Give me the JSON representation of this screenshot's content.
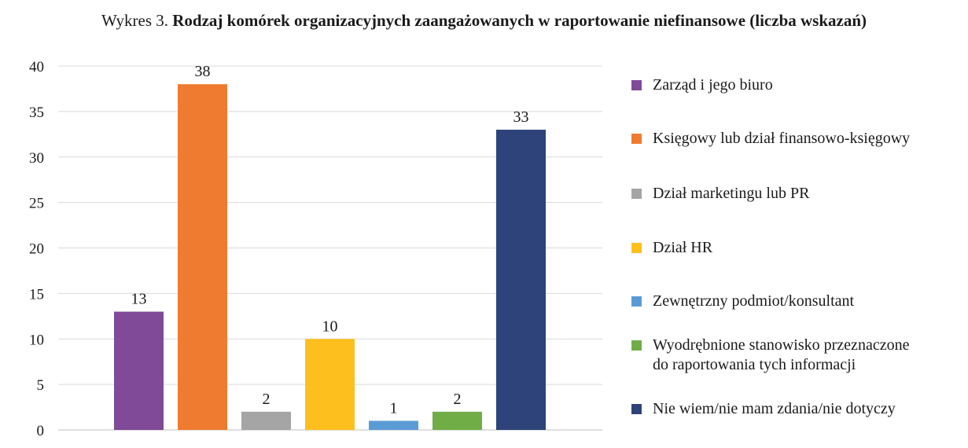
{
  "title": {
    "lead": "Wykres 3.",
    "main": "Rodzaj komórek organizacyjnych zaangażowanych w raportowanie niefinansowe (liczba wskazań)"
  },
  "chart_data": {
    "type": "bar",
    "title": "Wykres 3. Rodzaj komórek organizacyjnych zaangażowanych w raportowanie niefinansowe (liczba wskazań)",
    "xlabel": "",
    "ylabel": "",
    "ylim": [
      0,
      40
    ],
    "yticks": [
      "0",
      "5",
      "10",
      "15",
      "20",
      "25",
      "30",
      "35",
      "40"
    ],
    "grid": true,
    "legend_position": "right",
    "series": [
      {
        "name": "Zarząd i jego biuro",
        "value": 13,
        "color": "#804a98"
      },
      {
        "name": "Księgowy lub dział finansowo-księgowy",
        "value": 38,
        "color": "#ee7b30"
      },
      {
        "name": "Dział marketingu lub PR",
        "value": 2,
        "color": "#a5a5a5"
      },
      {
        "name": "Dział HR",
        "value": 10,
        "color": "#fcbf1d"
      },
      {
        "name": "Zewnętrzny podmiot/konsultant",
        "value": 1,
        "color": "#5b9bd5"
      },
      {
        "name": "Wyodrębnione stanowisko przeznaczone do raportowania tych informacji",
        "value": 2,
        "color": "#70ad47"
      },
      {
        "name": "Nie wiem/nie mam zdania/nie dotyczy",
        "value": 33,
        "color": "#2e4379"
      }
    ],
    "data_labels": [
      "13",
      "38",
      "2",
      "10",
      "1",
      "2",
      "33"
    ]
  },
  "legend": {
    "items": [
      {
        "lines": [
          "Zarząd i jego biuro"
        ]
      },
      {
        "lines": [
          "Księgowy lub dział finansowo-księgowy"
        ]
      },
      {
        "lines": [
          "Dział marketingu lub PR"
        ]
      },
      {
        "lines": [
          "Dział HR"
        ]
      },
      {
        "lines": [
          "Zewnętrzny podmiot/konsultant"
        ]
      },
      {
        "lines": [
          "Wyodrębnione stanowisko przeznaczone",
          "do raportowania tych informacji"
        ]
      },
      {
        "lines": [
          "Nie wiem/nie mam zdania/nie dotyczy"
        ]
      }
    ]
  },
  "colors": {
    "grid": "#d9d9d9",
    "axis": "#bfbfbf",
    "text": "#1a1a1a"
  }
}
